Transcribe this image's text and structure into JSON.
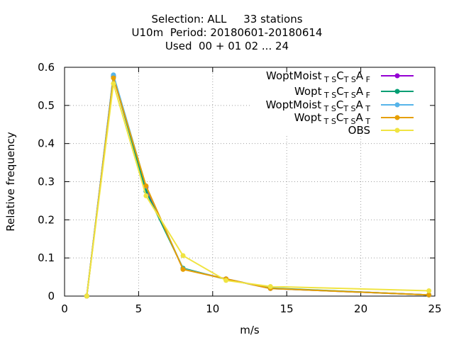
{
  "title": {
    "line1": "Selection: ALL     33 stations",
    "line2": "U10m  Period: 20180601-20180614",
    "line3": "Used  00 + 01 02 ... 24"
  },
  "chart_data": {
    "type": "line",
    "xlabel": "m/s",
    "ylabel": "Relative frequency",
    "xlim": [
      0,
      25
    ],
    "ylim": [
      0,
      0.6
    ],
    "xticks": [
      0,
      5,
      10,
      15,
      20,
      25
    ],
    "yticks": [
      0,
      0.1,
      0.2,
      0.3,
      0.4,
      0.5,
      0.6
    ],
    "xtick_labels": [
      "0",
      "5",
      "10",
      "15",
      "20",
      "25"
    ],
    "ytick_labels": [
      "0",
      "0.1",
      "0.2",
      "0.3",
      "0.4",
      "0.5",
      "0.6"
    ],
    "grid": "dotted",
    "legend_position": "top-right",
    "series": [
      {
        "name": "WoptMoist_TS C_TS A_F",
        "legend": {
          "base": "WoptMoist",
          "parts": [
            [
              "TS",
              ""
            ],
            [
              "C",
              ""
            ],
            [
              "TS",
              ""
            ],
            [
              "A",
              ""
            ],
            [
              "F",
              ""
            ]
          ]
        },
        "color": "#9400d3",
        "x": [
          1.5,
          3.3,
          5.5,
          8.0,
          10.9,
          13.9,
          24.6
        ],
        "y": [
          0.0,
          0.578,
          0.285,
          0.071,
          0.045,
          0.02,
          0.003
        ]
      },
      {
        "name": "Wopt_TS C_TS A_F",
        "color": "#009e73",
        "x": [
          1.5,
          3.3,
          5.5,
          8.0,
          10.9,
          13.9,
          24.6
        ],
        "y": [
          0.0,
          0.575,
          0.275,
          0.073,
          0.044,
          0.021,
          0.003
        ]
      },
      {
        "name": "WoptMoist_TS C_TS A_T",
        "color": "#56b4e9",
        "x": [
          1.5,
          3.3,
          5.5,
          8.0,
          10.9,
          13.9,
          24.6
        ],
        "y": [
          0.0,
          0.58,
          0.288,
          0.071,
          0.045,
          0.02,
          0.003
        ]
      },
      {
        "name": "Wopt_TS C_TS A_T",
        "color": "#e69f00",
        "x": [
          1.5,
          3.3,
          5.5,
          8.0,
          10.9,
          13.9,
          24.6
        ],
        "y": [
          0.0,
          0.572,
          0.289,
          0.07,
          0.045,
          0.02,
          0.003
        ]
      },
      {
        "name": "OBS",
        "color": "#f0e442",
        "x": [
          1.5,
          3.3,
          5.5,
          8.0,
          10.9,
          13.9,
          24.6
        ],
        "y": [
          0.0,
          0.557,
          0.263,
          0.106,
          0.041,
          0.025,
          0.014
        ]
      }
    ],
    "legend_entries": [
      {
        "main": "WoptMoist",
        "sub1": "T S",
        "c": "C",
        "sub2": "T S",
        "a": "A",
        "sub3": "F"
      },
      {
        "main": "Wopt",
        "sub1": "T S",
        "c": "C",
        "sub2": "T S",
        "a": "A",
        "sub3": "F"
      },
      {
        "main": "WoptMoist",
        "sub1": "T S",
        "c": "C",
        "sub2": "T S",
        "a": "A",
        "sub3": "T"
      },
      {
        "main": "Wopt",
        "sub1": "T S",
        "c": "C",
        "sub2": "T S",
        "a": "A",
        "sub3": "T"
      },
      {
        "main": "OBS"
      }
    ]
  }
}
